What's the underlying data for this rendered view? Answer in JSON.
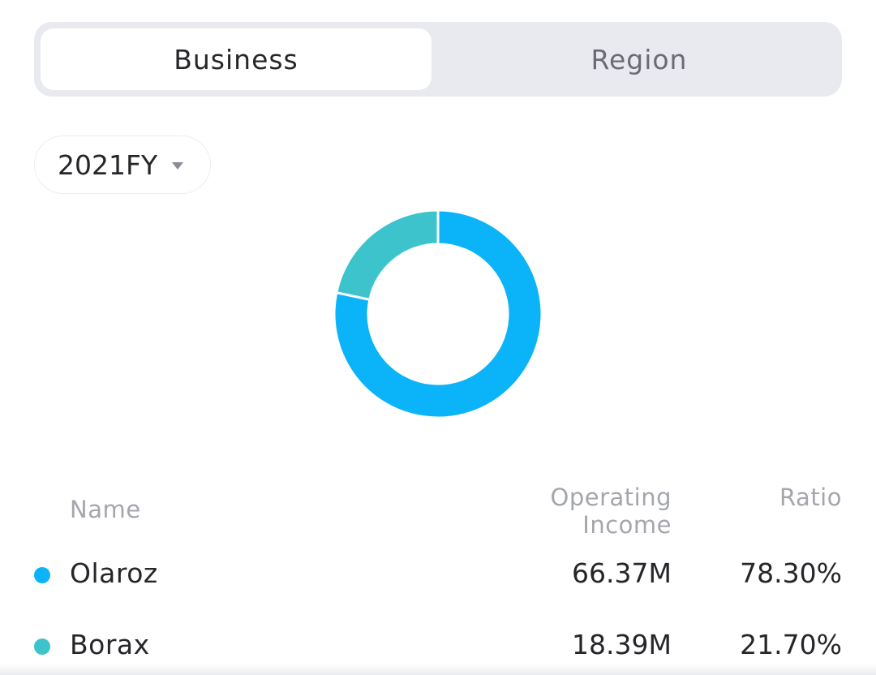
{
  "tabs": [
    {
      "label": "Business",
      "active": true
    },
    {
      "label": "Region",
      "active": false
    }
  ],
  "period": {
    "selected": "2021FY",
    "icon": "caret-down-icon"
  },
  "table": {
    "headers": {
      "name": "Name",
      "income_line1": "Operating",
      "income_line2": "Income",
      "ratio": "Ratio"
    },
    "rows": [
      {
        "name": "Olaroz",
        "income": "66.37M",
        "ratio": "78.30%",
        "color": "#0bb4f9"
      },
      {
        "name": "Borax",
        "income": "18.39M",
        "ratio": "21.70%",
        "color": "#3cc3cb"
      }
    ]
  },
  "chart_data": {
    "type": "pie",
    "donut": true,
    "categories": [
      "Olaroz",
      "Borax"
    ],
    "values": [
      78.3,
      21.7
    ],
    "colors": [
      "#0bb4f9",
      "#3cc3cb"
    ],
    "title": "",
    "start_angle_deg": 0,
    "direction": "clockwise"
  }
}
